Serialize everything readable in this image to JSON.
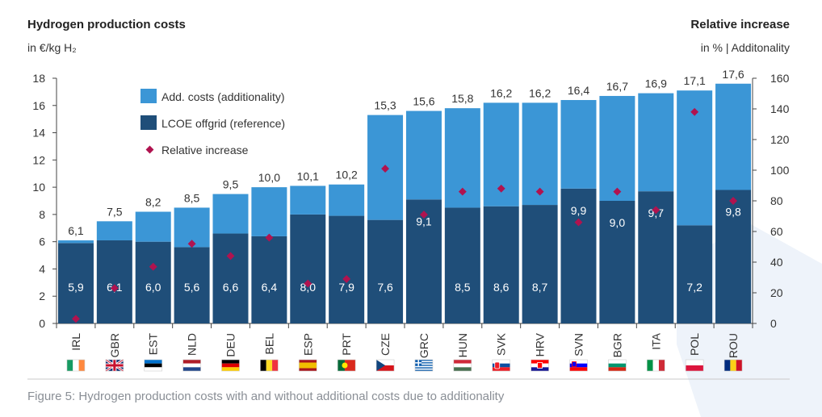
{
  "colors": {
    "lcoe": "#1f4e79",
    "additional": "#3b96d6",
    "marker": "#b0134f",
    "axis": "#444444",
    "background_shape": "#eef3fa"
  },
  "header": {
    "left_title": "Hydrogen production costs",
    "left_unit": "in €/kg H₂",
    "right_title": "Relative increase",
    "right_unit": "in % | Additonality"
  },
  "caption": "Figure 5: Hydrogen production costs with and without additional costs due to additionality",
  "chart_data": {
    "type": "bar",
    "stacked": true,
    "categories": [
      "IRL",
      "GBR",
      "EST",
      "NLD",
      "DEU",
      "BEL",
      "ESP",
      "PRT",
      "CZE",
      "GRC",
      "HUN",
      "SVK",
      "HRV",
      "SVN",
      "BGR",
      "ITA",
      "POL",
      "ROU"
    ],
    "flags": [
      "flag-ireland-icon",
      "flag-united-kingdom-icon",
      "flag-estonia-icon",
      "flag-netherlands-icon",
      "flag-germany-icon",
      "flag-belgium-icon",
      "flag-spain-icon",
      "flag-portugal-icon",
      "flag-czechia-icon",
      "flag-greece-icon",
      "flag-hungary-icon",
      "flag-slovakia-icon",
      "flag-croatia-icon",
      "flag-slovenia-icon",
      "flag-bulgaria-icon",
      "flag-italy-icon",
      "flag-poland-icon",
      "flag-romania-icon"
    ],
    "series": [
      {
        "name": "LCOE offgrid (reference)",
        "values": [
          5.9,
          6.1,
          6.0,
          5.6,
          6.6,
          6.4,
          8.0,
          7.9,
          7.6,
          9.1,
          8.5,
          8.6,
          8.7,
          9.9,
          9.0,
          9.7,
          7.2,
          9.8
        ],
        "labels": [
          "5,9",
          "6,1",
          "6,0",
          "5,6",
          "6,6",
          "6,4",
          "8,0",
          "7,9",
          "7,6",
          "9,1",
          "8,5",
          "8,6",
          "8,7",
          "9,9",
          "9,0",
          "9,7",
          "7,2",
          "9,8"
        ]
      },
      {
        "name": "Add. costs (additionality)",
        "values": [
          0.2,
          1.4,
          2.2,
          2.9,
          2.9,
          3.6,
          2.1,
          2.3,
          7.7,
          6.5,
          7.3,
          7.6,
          7.5,
          6.5,
          7.7,
          7.2,
          9.9,
          7.8
        ]
      }
    ],
    "totals": [
      6.1,
      7.5,
      8.2,
      8.5,
      9.5,
      10.0,
      10.1,
      10.2,
      15.3,
      15.6,
      15.8,
      16.2,
      16.2,
      16.4,
      16.7,
      16.9,
      17.1,
      17.6
    ],
    "total_labels": [
      "6,1",
      "7,5",
      "8,2",
      "8,5",
      "9,5",
      "10,0",
      "10,1",
      "10,2",
      "15,3",
      "15,6",
      "15,8",
      "16,2",
      "16,2",
      "16,4",
      "16,7",
      "16,9",
      "17,1",
      "17,6"
    ],
    "relative_increase": {
      "name": "Relative increase",
      "axis": "right",
      "values": [
        3,
        23,
        37,
        52,
        44,
        56,
        26,
        29,
        101,
        71,
        86,
        88,
        86,
        66,
        86,
        74,
        138,
        80
      ]
    },
    "ylim_left": [
      0,
      18
    ],
    "yticks_left": [
      0,
      2,
      4,
      6,
      8,
      10,
      12,
      14,
      16,
      18
    ],
    "ylim_right": [
      0,
      160
    ],
    "yticks_right": [
      0,
      20,
      40,
      60,
      80,
      100,
      120,
      140,
      160
    ],
    "legend": {
      "position": "top-left",
      "entries": [
        {
          "label": "Add. costs (additionality)",
          "kind": "bar-additional"
        },
        {
          "label": "LCOE offgrid (reference)",
          "kind": "bar-lcoe"
        },
        {
          "label": "Relative increase",
          "kind": "marker"
        }
      ]
    },
    "grid": false
  }
}
